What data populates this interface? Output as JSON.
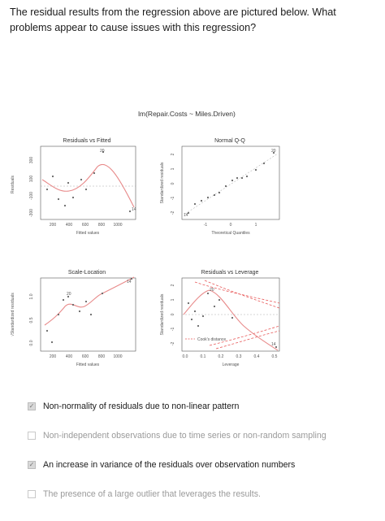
{
  "question": "The residual results from the regression above are pictured below.  What problems appear to cause issues with this regression?",
  "figure": {
    "main_title": "lm(Repair.Costs ~ Miles.Driven)",
    "panels": [
      {
        "title": "Residuals vs Fitted",
        "xlabel": "Fitted values",
        "ylabel": "Residuals",
        "xticks": [
          "200",
          "400",
          "600",
          "800",
          "1000"
        ],
        "yticks": [
          "-300",
          "-100",
          "100",
          "300"
        ],
        "point_labels": [
          "20",
          "14"
        ]
      },
      {
        "title": "Normal Q-Q",
        "xlabel": "Theoretical Quantiles",
        "ylabel": "Standardized residuals",
        "xticks": [
          "-1",
          "0",
          "1"
        ],
        "yticks": [
          "-2",
          "-1",
          "0",
          "1",
          "2"
        ],
        "point_labels": [
          "20",
          "14"
        ]
      },
      {
        "title": "Scale-Location",
        "xlabel": "Fitted values",
        "ylabel": "√Standardized residuals",
        "xticks": [
          "200",
          "400",
          "600",
          "800",
          "1000"
        ],
        "yticks": [
          "0.0",
          "0.5",
          "1.0"
        ],
        "point_labels": [
          "20",
          "14"
        ]
      },
      {
        "title": "Residuals vs Leverage",
        "xlabel": "Leverage",
        "ylabel": "Standardized residuals",
        "xticks": [
          "0.0",
          "0.1",
          "0.2",
          "0.3",
          "0.4",
          "0.5"
        ],
        "yticks": [
          "-2",
          "-1",
          "0",
          "1",
          "2"
        ],
        "legend": "Cook's distance",
        "point_labels": [
          "20",
          "14"
        ]
      }
    ]
  },
  "options": [
    {
      "label": "Non-normality of residuals due to non-linear pattern",
      "checked": true
    },
    {
      "label": "Non-independent observations due to time series or non-random sampling",
      "checked": false
    },
    {
      "label": "An increase in variance of the residuals over observation numbers",
      "checked": true
    },
    {
      "label": "The presence of a large outlier that leverages the results.",
      "checked": false
    }
  ],
  "colors": {
    "smooth": "#e88a8a",
    "cook": "#e85a5a",
    "points": "#666666"
  },
  "check_icon": "check-mark-icon"
}
